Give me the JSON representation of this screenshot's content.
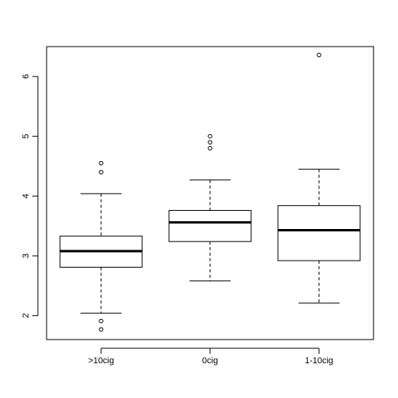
{
  "chart_data": {
    "type": "boxplot",
    "title": "",
    "xlabel": "",
    "ylabel": "",
    "categories": [
      ">10cig",
      "0cig",
      "1-10cig"
    ],
    "ylim": [
      1.6,
      6.5
    ],
    "yticks": [
      2,
      3,
      4,
      5,
      6
    ],
    "boxes": [
      {
        "category": ">10cig",
        "lower_whisker": 2.04,
        "q1": 2.81,
        "median": 3.08,
        "q3": 3.33,
        "upper_whisker": 4.04,
        "outliers": [
          4.55,
          4.4,
          1.91,
          1.77
        ]
      },
      {
        "category": "0cig",
        "lower_whisker": 2.58,
        "q1": 3.24,
        "median": 3.56,
        "q3": 3.76,
        "upper_whisker": 4.27,
        "outliers": [
          5.0,
          4.9,
          4.8
        ]
      },
      {
        "category": "1-10cig",
        "lower_whisker": 2.21,
        "q1": 2.92,
        "median": 3.43,
        "q3": 3.84,
        "upper_whisker": 4.45,
        "outliers": [
          6.36
        ]
      }
    ],
    "colors": {
      "box_fill": "#ffffff",
      "stroke": "#000000"
    },
    "grid": false,
    "legend": "none"
  }
}
